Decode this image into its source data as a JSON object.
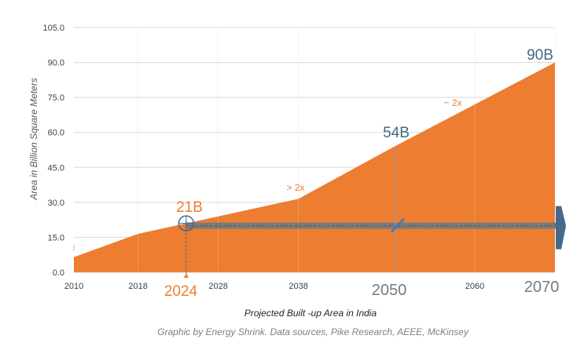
{
  "chart_data": {
    "type": "area",
    "xlabel": "Projected Built -up Area in India",
    "ylabel": "Area in Billion Square Meters",
    "credit": "Graphic by Energy Shrink. Data sources, Pike Research, AEEE, McKinsey",
    "xlim": [
      2010,
      2070
    ],
    "ylim": [
      0,
      105
    ],
    "y_ticks": [
      "0.0",
      "15.0",
      "30.0",
      "45.0",
      "60.0",
      "75.0",
      "90.0",
      "105.0"
    ],
    "x_ticks": [
      {
        "value": 2010,
        "label": "2010"
      },
      {
        "value": 2018,
        "label": "2018"
      },
      {
        "value": 2028,
        "label": "2028"
      },
      {
        "value": 2038,
        "label": "2038"
      },
      {
        "value": 2060,
        "label": "2060"
      }
    ],
    "grid": true,
    "series": [
      {
        "color": "#ed7d31",
        "x": [
          2010,
          2018,
          2024,
          2038,
          2050,
          2070
        ],
        "y": [
          6.5,
          16.5,
          21,
          31.5,
          54,
          90
        ]
      }
    ],
    "annotations": {
      "val_2024": "21B",
      "val_2050": "54B",
      "val_2070": "90B",
      "ratio_mid": "> 2x",
      "ratio_late": "~ 2x",
      "year_2024": "2024",
      "year_2050": "2050",
      "year_2070": "2070"
    },
    "colors": {
      "area": "#ed7d31",
      "marker": "#44698a",
      "bar": "#7a7a7a",
      "grid": "#d9d9d9"
    },
    "markers": {
      "reference_level": 20
    }
  }
}
